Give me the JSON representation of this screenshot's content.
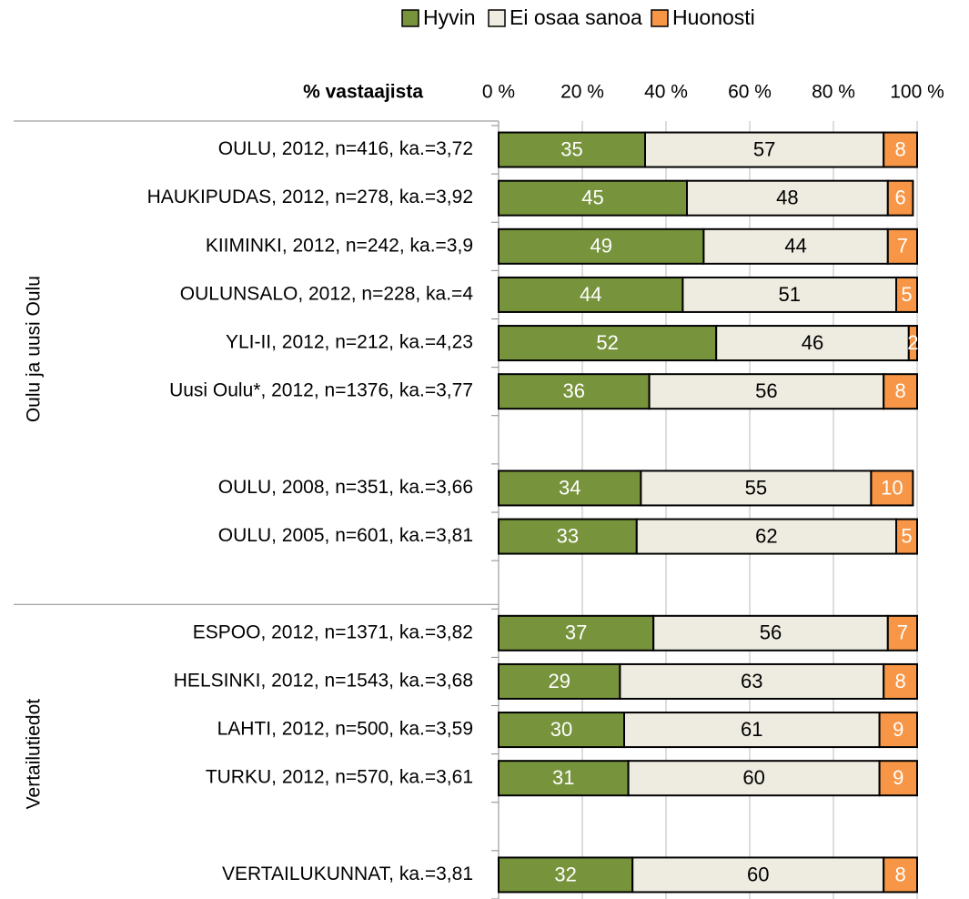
{
  "chart_data": {
    "type": "stacked-barh",
    "axis_label": "% vastaajista",
    "categories": [
      "OULU, 2012, n=416, ka.=3,72",
      "HAUKIPUDAS, 2012, n=278, ka.=3,92",
      "KIIMINKI, 2012, n=242, ka.=3,9",
      "OULUNSALO, 2012, n=228, ka.=4",
      "YLI-II, 2012, n=212, ka.=4,23",
      "Uusi Oulu*, 2012, n=1376, ka.=3,77",
      null,
      "OULU, 2008, n=351, ka.=3,66",
      "OULU, 2005, n=601, ka.=3,81",
      null,
      "ESPOO, 2012, n=1371, ka.=3,82",
      "HELSINKI, 2012, n=1543, ka.=3,68",
      "LAHTI, 2012, n=500, ka.=3,59",
      "TURKU, 2012, n=570, ka.=3,61",
      null,
      "VERTAILUKUNNAT, ka.=3,81"
    ],
    "groups": [
      "Oulu ja uusi Oulu",
      "Vertailutiedot"
    ],
    "series": [
      {
        "name": "Hyvin",
        "color": "#77933c",
        "values": [
          35,
          45,
          49,
          44,
          52,
          36,
          null,
          34,
          33,
          null,
          37,
          29,
          30,
          31,
          null,
          32
        ]
      },
      {
        "name": "Ei osaa sanoa",
        "color": "#eeece1",
        "values": [
          57,
          48,
          44,
          51,
          46,
          56,
          null,
          55,
          62,
          null,
          56,
          63,
          61,
          60,
          null,
          60
        ]
      },
      {
        "name": "Huonosti",
        "color": "#f79646",
        "values": [
          8,
          6,
          7,
          5,
          2,
          8,
          null,
          10,
          5,
          null,
          7,
          8,
          9,
          9,
          null,
          8
        ]
      }
    ],
    "xlim": [
      0,
      100
    ],
    "xticks": [
      {
        "value": 0,
        "label": "0 %"
      },
      {
        "value": 20,
        "label": "20 %"
      },
      {
        "value": 40,
        "label": "40 %"
      },
      {
        "value": 60,
        "label": "60 %"
      },
      {
        "value": 80,
        "label": "80 %"
      },
      {
        "value": 100,
        "label": "100 %"
      }
    ],
    "grid": true
  }
}
